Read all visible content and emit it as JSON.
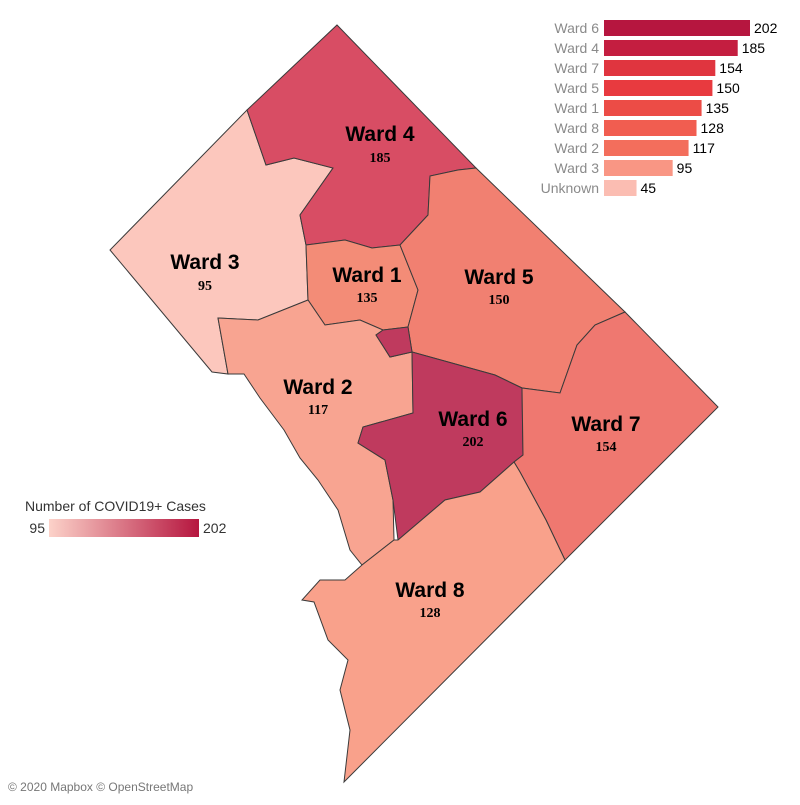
{
  "map": {
    "wards": [
      {
        "id": "ward-1",
        "label": "Ward 1",
        "cases": 135,
        "color": "#f38c77"
      },
      {
        "id": "ward-2",
        "label": "Ward 2",
        "cases": 117,
        "color": "#f8a491"
      },
      {
        "id": "ward-3",
        "label": "Ward 3",
        "cases": 95,
        "color": "#fcc7bd"
      },
      {
        "id": "ward-4",
        "label": "Ward 4",
        "cases": 185,
        "color": "#d84d64"
      },
      {
        "id": "ward-5",
        "label": "Ward 5",
        "cases": 150,
        "color": "#f18071"
      },
      {
        "id": "ward-6",
        "label": "Ward 6",
        "cases": 202,
        "color": "#bf3a5e"
      },
      {
        "id": "ward-7",
        "label": "Ward 7",
        "cases": 154,
        "color": "#ef7870"
      },
      {
        "id": "ward-8",
        "label": "Ward 8",
        "cases": 128,
        "color": "#f9a18b"
      }
    ]
  },
  "chart_data": {
    "type": "bar",
    "orientation": "horizontal",
    "categories": [
      "Ward 6",
      "Ward 4",
      "Ward 7",
      "Ward 5",
      "Ward 1",
      "Ward 8",
      "Ward 2",
      "Ward 3",
      "Unknown"
    ],
    "values": [
      202,
      185,
      154,
      150,
      135,
      128,
      117,
      95,
      45
    ],
    "colors": [
      "#b6163f",
      "#c41e40",
      "#e0353f",
      "#e83a3f",
      "#ec4c46",
      "#f15d50",
      "#f36e5c",
      "#f99684",
      "#fbbdb2"
    ],
    "xlim": [
      0,
      202
    ],
    "title": "",
    "xlabel": "",
    "ylabel": ""
  },
  "legend": {
    "title": "Number of COVID19+ Cases",
    "min_label": "95",
    "max_label": "202",
    "min_color": "#fcd2c9",
    "max_color": "#b6163f"
  },
  "attribution": "© 2020 Mapbox © OpenStreetMap"
}
